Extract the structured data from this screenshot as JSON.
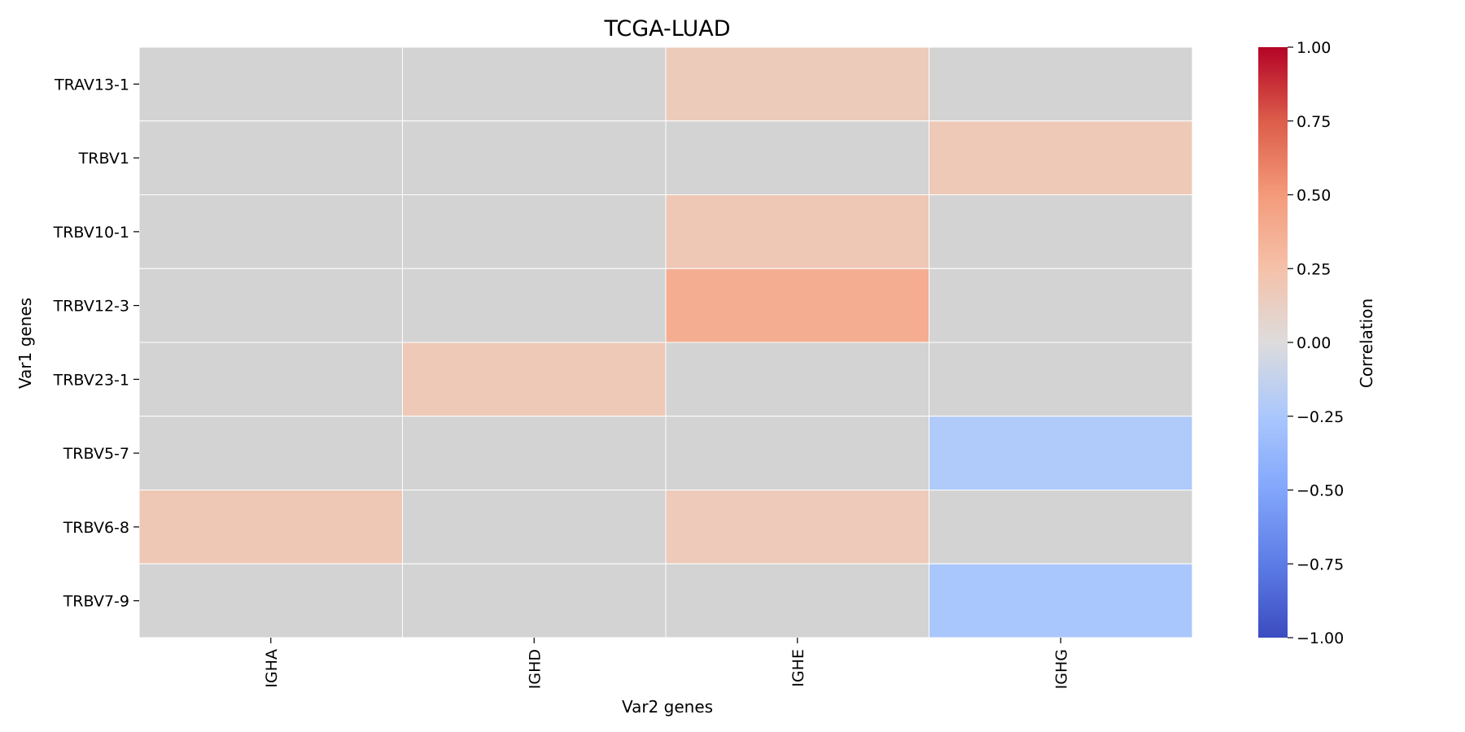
{
  "chart_data": {
    "type": "heatmap",
    "title": "TCGA-LUAD",
    "xlabel": "Var2 genes",
    "ylabel": "Var1 genes",
    "x_categories": [
      "IGHA",
      "IGHD",
      "IGHE",
      "IGHG"
    ],
    "y_categories": [
      "TRAV13-1",
      "TRBV1",
      "TRBV10-1",
      "TRBV12-3",
      "TRBV23-1",
      "TRBV5-7",
      "TRBV6-8",
      "TRBV7-9"
    ],
    "values": [
      [
        null,
        null,
        0.16,
        null
      ],
      [
        null,
        null,
        null,
        0.18
      ],
      [
        null,
        null,
        0.19,
        null
      ],
      [
        null,
        null,
        0.38,
        null
      ],
      [
        null,
        0.18,
        null,
        null
      ],
      [
        null,
        null,
        null,
        -0.22
      ],
      [
        0.19,
        null,
        0.17,
        null
      ],
      [
        null,
        null,
        null,
        -0.25
      ]
    ],
    "missing_color": "#d3d3d3",
    "colormap": "coolwarm",
    "colorbar": {
      "label": "Correlation",
      "range": [
        -1.0,
        1.0
      ],
      "ticks": [
        "1.00",
        "0.75",
        "0.50",
        "0.25",
        "0.00",
        "−0.25",
        "−0.50",
        "−0.75",
        "−1.00"
      ],
      "tick_values": [
        1.0,
        0.75,
        0.5,
        0.25,
        0.0,
        -0.25,
        -0.5,
        -0.75,
        -1.0
      ]
    },
    "grid": false,
    "legend": "colorbar-right"
  }
}
